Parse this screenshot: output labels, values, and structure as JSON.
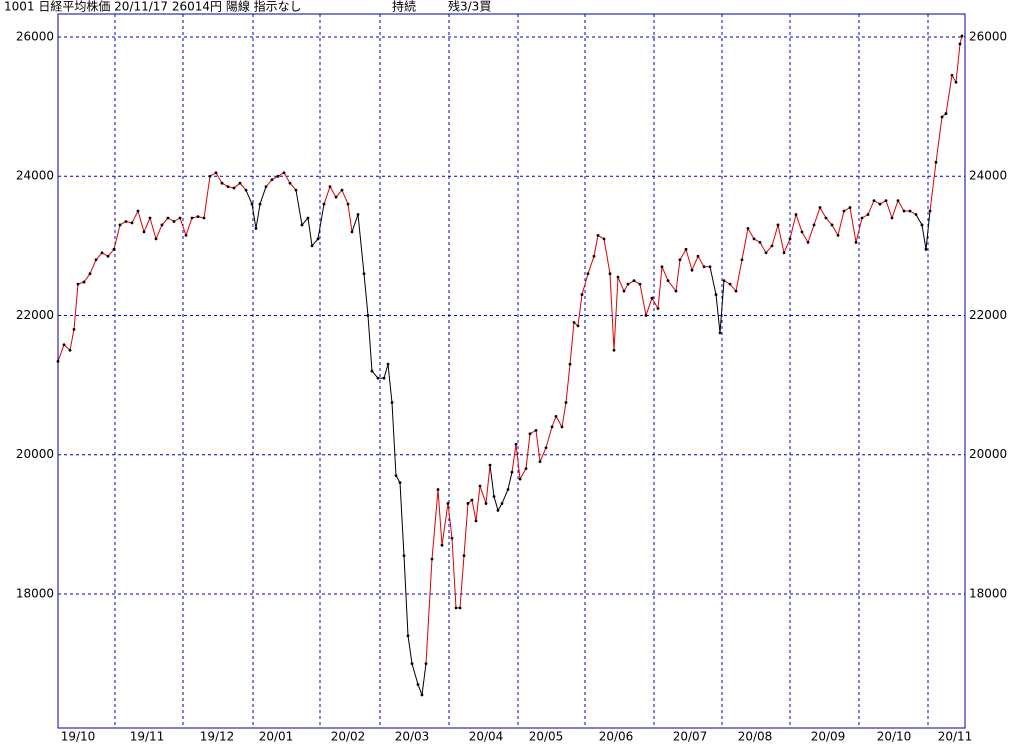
{
  "chart_data": {
    "type": "line",
    "header": [
      "1001 日経平均株価 20/11/17 26014円 陽線 指示なし",
      "持続",
      "残3/3買"
    ],
    "x": [
      0,
      6,
      12,
      16,
      20,
      26,
      32,
      38,
      44,
      50,
      56,
      62,
      68,
      74,
      80,
      86,
      92,
      98,
      104,
      110,
      116,
      122,
      128,
      134,
      140,
      146,
      152,
      158,
      164,
      170,
      176,
      182,
      188,
      194,
      198,
      202,
      208,
      214,
      220,
      226,
      232,
      238,
      244,
      250,
      254,
      260,
      266,
      272,
      278,
      284,
      290,
      294,
      300,
      306,
      310,
      314,
      320,
      326,
      330,
      334,
      338,
      342,
      346,
      350,
      354,
      360,
      364,
      368,
      374,
      380,
      384,
      390,
      394,
      398,
      402,
      406,
      410,
      414,
      418,
      422,
      428,
      432,
      436,
      440,
      444,
      450,
      454,
      458,
      462,
      468,
      472,
      478,
      482,
      488,
      494,
      498,
      504,
      508,
      512,
      516,
      520,
      524,
      530,
      536,
      540,
      546,
      552,
      556,
      560,
      566,
      570,
      576,
      582,
      588,
      594,
      600,
      604,
      610,
      618,
      622,
      628,
      634,
      640,
      646,
      652,
      658,
      662,
      666,
      672,
      678,
      684,
      690,
      696,
      702,
      708,
      714,
      720,
      726,
      732,
      738,
      744,
      750,
      756,
      762,
      768,
      774,
      780,
      786,
      792,
      798,
      804,
      810,
      816,
      822,
      828,
      834,
      840,
      846,
      852,
      858,
      864,
      868,
      872,
      878,
      884,
      888,
      894,
      898,
      902,
      904
    ],
    "series": [
      {
        "color": "#e00000",
        "alt_color": "#000000",
        "alt_x_ranges": [
          [
            190,
            208
          ],
          [
            242,
            266
          ],
          [
            298,
            372
          ],
          [
            436,
            454
          ],
          [
            654,
            666
          ],
          [
            862,
            872
          ]
        ],
        "dot_color": "#000000",
        "values": [
          21340,
          21580,
          21500,
          21800,
          22450,
          22480,
          22600,
          22800,
          22900,
          22850,
          22950,
          23300,
          23350,
          23330,
          23500,
          23200,
          23400,
          23100,
          23300,
          23400,
          23350,
          23400,
          23150,
          23400,
          23420,
          23400,
          24000,
          24050,
          23900,
          23850,
          23830,
          23900,
          23800,
          23600,
          23250,
          23600,
          23850,
          23950,
          24000,
          24050,
          23900,
          23800,
          23300,
          23400,
          23000,
          23100,
          23600,
          23850,
          23700,
          23800,
          23600,
          23200,
          23450,
          22600,
          22000,
          21200,
          21100,
          21100,
          21300,
          20750,
          19700,
          19600,
          18550,
          17400,
          17000,
          16700,
          16550,
          17000,
          18500,
          19500,
          18700,
          19300,
          18800,
          17800,
          17800,
          18550,
          19300,
          19350,
          19050,
          19550,
          19300,
          19850,
          19400,
          19200,
          19300,
          19500,
          19750,
          20150,
          19650,
          19800,
          20300,
          20350,
          19900,
          20100,
          20400,
          20550,
          20400,
          20750,
          21300,
          21900,
          21850,
          22300,
          22600,
          22850,
          23150,
          23100,
          22600,
          21500,
          22550,
          22350,
          22450,
          22500,
          22450,
          22000,
          22250,
          22100,
          22700,
          22500,
          22350,
          22800,
          22950,
          22650,
          22850,
          22700,
          22700,
          22300,
          21750,
          22500,
          22450,
          22350,
          22800,
          23250,
          23100,
          23050,
          22900,
          23000,
          23300,
          22900,
          23100,
          23450,
          23200,
          23050,
          23300,
          23550,
          23400,
          23300,
          23150,
          23500,
          23550,
          23050,
          23400,
          23450,
          23650,
          23600,
          23650,
          23400,
          23650,
          23500,
          23500,
          23450,
          23300,
          22950,
          23500,
          24200,
          24850,
          24900,
          25450,
          25350,
          25900,
          26014
        ]
      }
    ],
    "xlim": [
      0,
      907
    ],
    "ylim": [
      16075,
      26330
    ],
    "yticks": [
      18000,
      20000,
      22000,
      24000,
      26000
    ],
    "xgrid": [
      57,
      125,
      195,
      262,
      322,
      391,
      460,
      527,
      596,
      664,
      732,
      801,
      870
    ],
    "xticks": [
      {
        "value": 20,
        "label": "19/10"
      },
      {
        "value": 89,
        "label": "19/11"
      },
      {
        "value": 159,
        "label": "19/12"
      },
      {
        "value": 218,
        "label": "20/01"
      },
      {
        "value": 290,
        "label": "20/02"
      },
      {
        "value": 354,
        "label": "20/03"
      },
      {
        "value": 428,
        "label": "20/04"
      },
      {
        "value": 488,
        "label": "20/05"
      },
      {
        "value": 558,
        "label": "20/06"
      },
      {
        "value": 632,
        "label": "20/07"
      },
      {
        "value": 697,
        "label": "20/08"
      },
      {
        "value": 770,
        "label": "20/09"
      },
      {
        "value": 836,
        "label": "20/10"
      },
      {
        "value": 897,
        "label": "20/11"
      }
    ],
    "grid": true,
    "frame_color": "#0000a0"
  }
}
